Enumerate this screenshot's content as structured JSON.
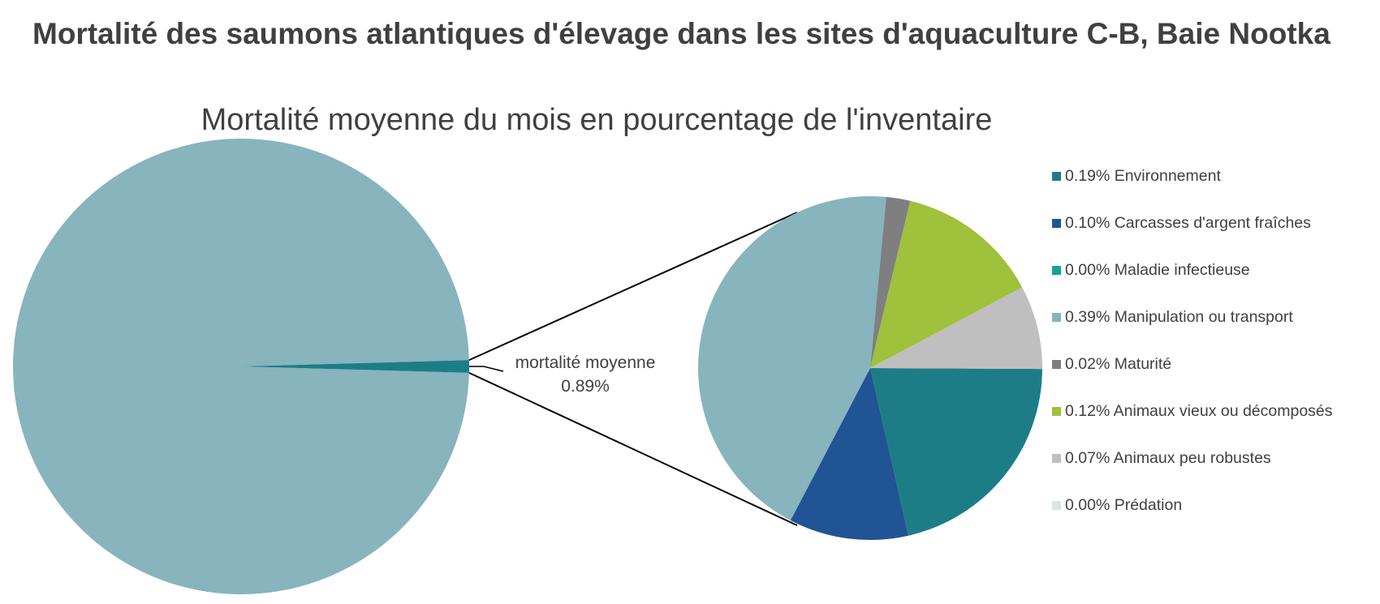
{
  "heading": "Mortalité des saumons atlantiques d'élevage dans les sites d'aquaculture C-B, Baie Nootka",
  "chart_data": {
    "type": "pie",
    "title": "Mortalité moyenne du mois en pourcentage de l'inventaire",
    "main_pie": {
      "slices": [
        {
          "label": "mortalité moyenne",
          "value": 0.89,
          "color": "#1d7d87"
        },
        {
          "label": "",
          "value": 99.11,
          "color": "#87b4bd"
        }
      ],
      "callout_label": "mortalité moyenne",
      "callout_value": "0.89%"
    },
    "breakdown_pie": {
      "unit": "% de l'inventaire",
      "slices": [
        {
          "label": "Environnement",
          "value": 0.19,
          "legend": "0.19% Environnement",
          "color": "#1d7d87"
        },
        {
          "label": "Carcasses d'argent fraîches",
          "value": 0.1,
          "legend": "0.10% Carcasses d'argent fraîches",
          "color": "#215494"
        },
        {
          "label": "Maladie infectieuse",
          "value": 0.0,
          "legend": "0.00% Maladie infectieuse",
          "color": "#13a39a"
        },
        {
          "label": "Manipulation ou transport",
          "value": 0.39,
          "legend": "0.39% Manipulation ou transport",
          "color": "#87b4bd"
        },
        {
          "label": "Maturité",
          "value": 0.02,
          "legend": "0.02% Maturité",
          "color": "#7f7f7f"
        },
        {
          "label": "Animaux vieux ou décomposés",
          "value": 0.12,
          "legend": "0.12% Animaux vieux ou décomposés",
          "color": "#9fc13b"
        },
        {
          "label": "Animaux peu robustes",
          "value": 0.07,
          "legend": "0.07% Animaux peu robustes",
          "color": "#bfbfbf"
        },
        {
          "label": "Prédation",
          "value": 0.0,
          "legend": "0.00% Prédation",
          "color": "#d5e8e2"
        }
      ]
    },
    "legend_position": "right"
  }
}
